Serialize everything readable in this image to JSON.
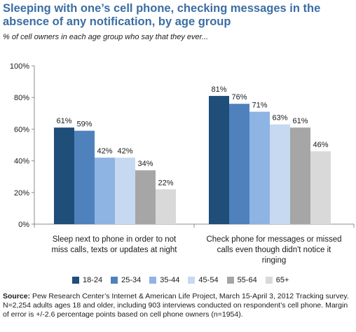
{
  "title": "Sleeping with one’s cell phone, checking messages in the absence of any notification, by age group",
  "subtitle": "% of cell owners in each age group who say that they ever...",
  "chart_data": {
    "type": "bar",
    "categories": [
      [
        "Sleep next to phone in order to not",
        "miss calls, texts or updates at night"
      ],
      [
        "Check phone for messages or missed",
        "calls even though didn't notice it",
        "ringing"
      ]
    ],
    "series": [
      {
        "name": "18-24",
        "color": "#1f4e79",
        "values": [
          61,
          81
        ],
        "labels": [
          "61%",
          "81%"
        ]
      },
      {
        "name": "25-34",
        "color": "#4f81bd",
        "values": [
          59,
          76
        ],
        "labels": [
          "59%",
          "76%"
        ]
      },
      {
        "name": "35-44",
        "color": "#8eb4e3",
        "values": [
          42,
          71
        ],
        "labels": [
          "42%",
          "71%"
        ]
      },
      {
        "name": "45-54",
        "color": "#c6d9f1",
        "values": [
          42,
          63
        ],
        "labels": [
          "42%",
          "63%"
        ]
      },
      {
        "name": "55-64",
        "color": "#a6a6a6",
        "values": [
          34,
          61
        ],
        "labels": [
          "34%",
          "61%"
        ]
      },
      {
        "name": "65+",
        "color": "#d9d9d9",
        "values": [
          22,
          46
        ],
        "labels": [
          "22%",
          "46%"
        ]
      }
    ],
    "ylim": [
      0,
      100
    ],
    "yticks": [
      0,
      20,
      40,
      60,
      80,
      100
    ],
    "ytick_labels": [
      "0%",
      "20%",
      "40%",
      "60%",
      "80%",
      "100%"
    ],
    "legend_position": "bottom",
    "grid": false
  },
  "source": {
    "label": "Source:",
    "text": " Pew Research Center’s Internet & American Life Project, March 15-April 3, 2012 Tracking survey. N=2,254 adults ages 18 and older, including 903 interviews conducted on respondent’s cell phone. Margin of error is +/-2.6 percentage points based on cell phone owners (n=1954)."
  }
}
